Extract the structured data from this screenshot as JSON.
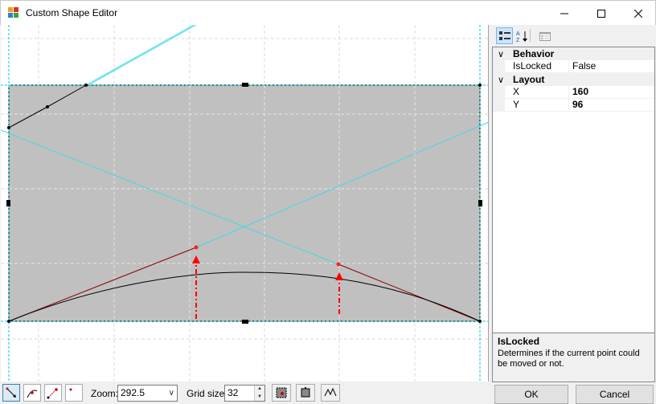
{
  "window": {
    "title": "Custom Shape Editor",
    "controls": [
      "minimize-icon",
      "maximize-icon",
      "close-icon"
    ]
  },
  "canvas": {
    "shape_fill": "#c0c0c0",
    "guide_color": "#00c8d8",
    "control_line_color": "#8b0000",
    "arrow_color": "#ff0000"
  },
  "property_grid": {
    "toolbar": [
      "categorized-icon",
      "alphabetical-icon",
      "property-pages-icon"
    ],
    "categories": [
      {
        "name": "Behavior",
        "rows": [
          {
            "name": "IsLocked",
            "value": "False"
          }
        ]
      },
      {
        "name": "Layout",
        "rows": [
          {
            "name": "X",
            "value": "160"
          },
          {
            "name": "Y",
            "value": "96"
          }
        ]
      }
    ],
    "description": {
      "title": "IsLocked",
      "text": "Determines if the current point could be moved or not."
    }
  },
  "bottom": {
    "tools": [
      "select-point-tool-icon",
      "add-point-tool-icon",
      "bezier-tool-icon",
      "blank-tool-icon"
    ],
    "zoom_label": "Zoom:",
    "zoom_value": "292.5",
    "grid_label": "Grid size:",
    "grid_value": "32",
    "ok_label": "OK",
    "cancel_label": "Cancel"
  }
}
